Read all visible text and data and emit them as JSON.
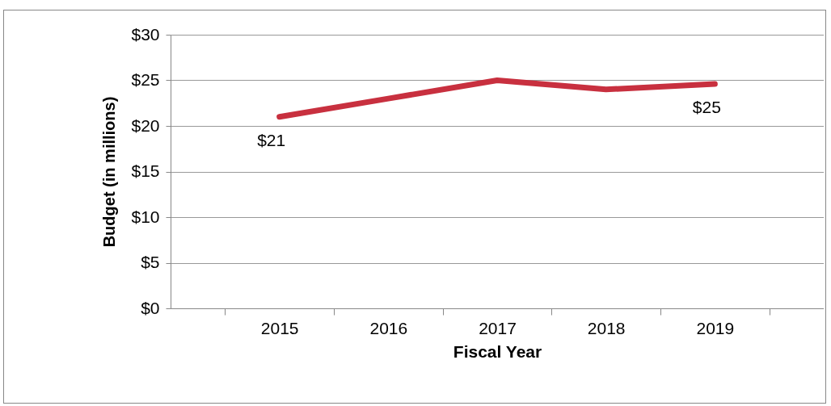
{
  "chart_data": {
    "type": "line",
    "xlabel": "Fiscal Year",
    "ylabel": "Budget (in millions)",
    "categories": [
      "2015",
      "2016",
      "2017",
      "2018",
      "2019"
    ],
    "series": [
      {
        "color": "#c8303f",
        "values": [
          21,
          23,
          25,
          24,
          24.6
        ],
        "value_labels": [
          "$21",
          null,
          null,
          null,
          "$25"
        ]
      }
    ],
    "ylim": [
      0,
      30
    ],
    "yticks": [
      {
        "value": 0,
        "label": "$0"
      },
      {
        "value": 5,
        "label": "$5"
      },
      {
        "value": 10,
        "label": "$10"
      },
      {
        "value": 15,
        "label": "$15"
      },
      {
        "value": 20,
        "label": "$20"
      },
      {
        "value": 25,
        "label": "$25"
      },
      {
        "value": 30,
        "label": "$30"
      }
    ],
    "grid": "y",
    "marker": "none",
    "line_style": "solid"
  }
}
